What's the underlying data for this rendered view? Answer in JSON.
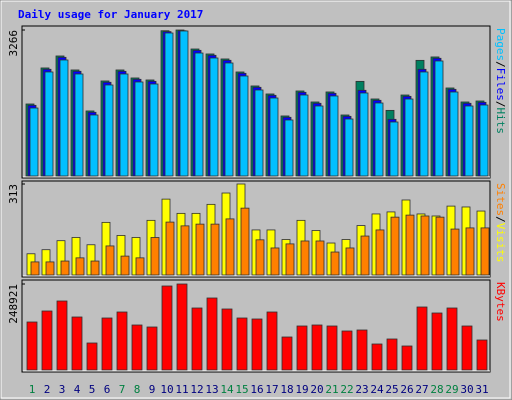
{
  "title": "Daily usage for January 2017",
  "legend_separator": "/",
  "title_color": "#0000ff",
  "weekday_label_color": "#00007f",
  "weekend_label_color": "#008040",
  "weekend": [
    true,
    false,
    false,
    false,
    false,
    false,
    true,
    true,
    false,
    false,
    false,
    false,
    false,
    true,
    true,
    false,
    false,
    false,
    false,
    false,
    true,
    true,
    false,
    false,
    false,
    false,
    false,
    true,
    true,
    false,
    false
  ],
  "chart_data": [
    {
      "type": "bar",
      "ylim": [
        0,
        3266
      ],
      "yticks": [
        3266
      ],
      "series": [
        {
          "name": "Hits",
          "color": "#008060",
          "values": [
            1611,
            2417,
            2685,
            2372,
            1455,
            2126,
            2372,
            2193,
            2148,
            3250,
            3266,
            2841,
            2730,
            2618,
            2327,
            2014,
            1835,
            1343,
            1902,
            1656,
            1880,
            1365,
            2117,
            1723,
            1468,
            1812,
            2587,
            2663,
            1969,
            1656,
            1678
          ]
        },
        {
          "name": "Files",
          "color": "#0000ff",
          "values": [
            1581,
            2387,
            2655,
            2342,
            1425,
            2096,
            2342,
            2163,
            2118,
            3230,
            3250,
            2811,
            2700,
            2588,
            2297,
            1984,
            1805,
            1313,
            1872,
            1626,
            1850,
            1335,
            1917,
            1693,
            1268,
            1782,
            2387,
            2633,
            1939,
            1626,
            1648
          ]
        },
        {
          "name": "Pages",
          "color": "#00c0ff",
          "values": [
            1521,
            2327,
            2595,
            2282,
            1365,
            2036,
            2282,
            2103,
            2058,
            3199,
            3244,
            2751,
            2640,
            2528,
            2237,
            1924,
            1745,
            1253,
            1812,
            1566,
            1790,
            1275,
            1857,
            1633,
            1208,
            1722,
            2327,
            2573,
            1879,
            1566,
            1588
          ]
        }
      ]
    },
    {
      "type": "bar",
      "ylim": [
        0,
        313
      ],
      "yticks": [
        313
      ],
      "series": [
        {
          "name": "Visits",
          "color": "#ffff00",
          "values": [
            73,
            87,
            118,
            129,
            104,
            181,
            136,
            129,
            188,
            261,
            212,
            212,
            243,
            282,
            313,
            155,
            155,
            122,
            188,
            153,
            110,
            122,
            170,
            210,
            217,
            258,
            210,
            203,
            237,
            234,
            220
          ]
        },
        {
          "name": "Sites",
          "color": "#ff8000",
          "values": [
            45,
            45,
            48,
            59,
            48,
            100,
            65,
            59,
            129,
            182,
            169,
            175,
            175,
            193,
            230,
            121,
            93,
            107,
            117,
            117,
            79,
            93,
            134,
            155,
            199,
            206,
            203,
            199,
            158,
            162,
            162
          ]
        }
      ]
    },
    {
      "type": "bar",
      "ylim": [
        0,
        248921
      ],
      "yticks": [
        248921
      ],
      "categories": [
        "1",
        "2",
        "3",
        "4",
        "5",
        "6",
        "7",
        "8",
        "9",
        "10",
        "11",
        "12",
        "13",
        "14",
        "15",
        "16",
        "17",
        "18",
        "19",
        "20",
        "21",
        "22",
        "23",
        "24",
        "25",
        "26",
        "27",
        "28",
        "29",
        "30",
        "31"
      ],
      "series": [
        {
          "name": "KBytes",
          "color": "#ff0000",
          "values": [
            138933,
            170772,
            199716,
            153405,
            78150,
            150510,
            167874,
            130248,
            124460,
            243132,
            248921,
            179452,
            208397,
            176558,
            150510,
            147616,
            167874,
            95516,
            127354,
            130248,
            127354,
            112882,
            115777,
            75254,
            89727,
            69465,
            182346,
            164980,
            179452,
            127354,
            86832
          ]
        }
      ]
    }
  ]
}
